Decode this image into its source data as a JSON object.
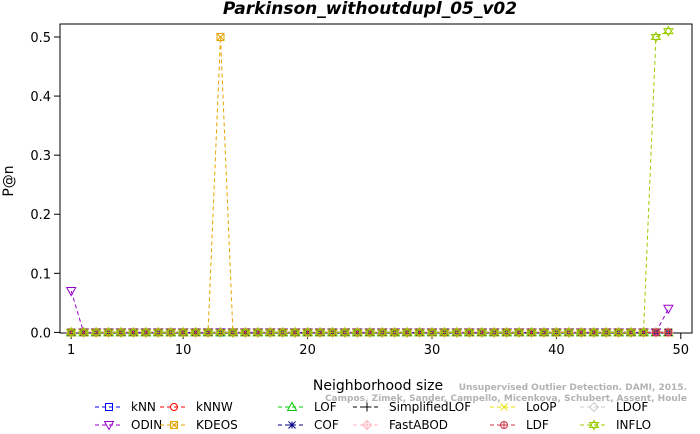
{
  "chart_data": {
    "type": "line",
    "title": "Parkinson_withoutdupl_05_v02",
    "xlabel": "Neighborhood size",
    "ylabel": "P@n",
    "xlim": [
      1,
      50
    ],
    "ylim": [
      0,
      0.5
    ],
    "xticks": [
      1,
      10,
      20,
      30,
      40,
      50
    ],
    "yticks": [
      0.0,
      0.1,
      0.2,
      0.3,
      0.4,
      0.5
    ],
    "grid": false,
    "legend_position": "bottom",
    "x": [
      1,
      2,
      3,
      4,
      5,
      6,
      7,
      8,
      9,
      10,
      11,
      12,
      13,
      14,
      15,
      16,
      17,
      18,
      19,
      20,
      21,
      22,
      23,
      24,
      25,
      26,
      27,
      28,
      29,
      30,
      31,
      32,
      33,
      34,
      35,
      36,
      37,
      38,
      39,
      40,
      41,
      42,
      43,
      44,
      45,
      46,
      47,
      48,
      49
    ],
    "series": [
      {
        "name": "kNN",
        "color": "#0000ff",
        "marker": "square",
        "default": 0,
        "points": []
      },
      {
        "name": "kNNW",
        "color": "#ff0000",
        "marker": "circle",
        "default": 0,
        "points": []
      },
      {
        "name": "LOF",
        "color": "#00cc00",
        "marker": "triangle-up",
        "default": 0,
        "points": []
      },
      {
        "name": "SimplifiedLOF",
        "color": "#000000",
        "marker": "plus",
        "default": 0,
        "points": []
      },
      {
        "name": "LoOP",
        "color": "#e6e600",
        "marker": "x",
        "default": 0,
        "points": []
      },
      {
        "name": "LDOF",
        "color": "#cccccc",
        "marker": "diamond",
        "default": 0,
        "points": []
      },
      {
        "name": "ODIN",
        "color": "#9900cc",
        "marker": "triangle-down",
        "default": 0,
        "points": [
          [
            1,
            0.07
          ],
          [
            49,
            0.04
          ]
        ]
      },
      {
        "name": "KDEOS",
        "color": "#e6a500",
        "marker": "square-x",
        "default": 0,
        "points": [
          [
            13,
            0.5
          ]
        ]
      },
      {
        "name": "COF",
        "color": "#000080",
        "marker": "star",
        "default": 0,
        "points": []
      },
      {
        "name": "FastABOD",
        "color": "#ffb6c1",
        "marker": "diamond-plus",
        "default": 0,
        "points": []
      },
      {
        "name": "LDF",
        "color": "#cc3344",
        "marker": "circle-plus",
        "default": 0,
        "points": []
      },
      {
        "name": "INFLO",
        "color": "#99cc00",
        "marker": "hexagram",
        "default": 0,
        "points": [
          [
            48,
            0.5
          ],
          [
            49,
            0.51
          ]
        ]
      }
    ],
    "watermark": [
      "Unsupervised Outlier Detection. DAMI, 2015.",
      "Campos, Zimek, Sander, Campello, Micenkova, Schubert, Assent, Houle"
    ]
  }
}
